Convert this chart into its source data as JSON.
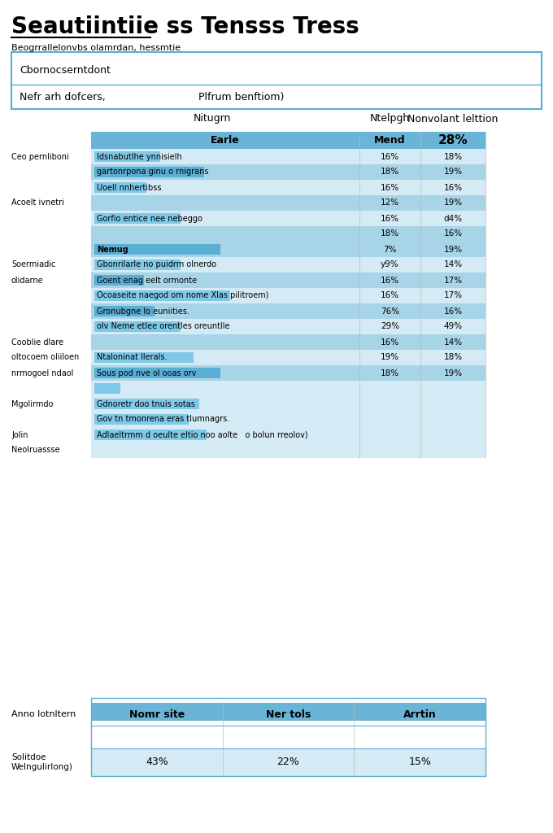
{
  "title": "Seautiintiie ss Tensss Tress",
  "subtitle": "Beogrrallelonvbs olamrdan, hessmtie",
  "bg_color": "#ffffff",
  "header_box_text1": "Cbornocserntdont",
  "header_box_text2": "Nefr arh dofcers,",
  "header_box_text3": "Plfrum benftiom)",
  "col_headers": [
    "Nitugrn",
    "Ntelpgh",
    "Nonvolant lelttion"
  ],
  "table_header_row": [
    "Earle",
    "Mend",
    "28%"
  ],
  "table_header_bg": "#6ab4d8",
  "table_row_bg_dark": "#a8d4e8",
  "table_row_bg_light": "#d4eaf5",
  "bar_color_on_light": "#7ec8e8",
  "bar_color_on_dark": "#5aaed4",
  "table_rows": [
    {
      "left_label": "Ceo pernliboni",
      "bar_text": "Idsnabutlhe ynnisielh",
      "bar_width": 0.25,
      "mid_val": "16%",
      "right_val": "18%",
      "row_bg": "light"
    },
    {
      "left_label": "",
      "bar_text": "gartonrpona ginu o rnigrans",
      "bar_width": 0.42,
      "mid_val": "18%",
      "right_val": "19%",
      "row_bg": "dark"
    },
    {
      "left_label": "",
      "bar_text": "Uoell nnhertibss",
      "bar_width": 0.2,
      "mid_val": "16%",
      "right_val": "16%",
      "row_bg": "light"
    },
    {
      "left_label": "Acoelt ivnetri",
      "bar_text": "",
      "bar_width": 0.0,
      "mid_val": "12%",
      "right_val": "19%",
      "row_bg": "dark"
    },
    {
      "left_label": "",
      "bar_text": "Gorfio entice nee nebeggo",
      "bar_width": 0.33,
      "mid_val": "16%",
      "right_val": "d4%",
      "row_bg": "light"
    },
    {
      "left_label": "",
      "bar_text": "",
      "bar_width": 0.0,
      "mid_val": "18%",
      "right_val": "16%",
      "row_bg": "dark"
    },
    {
      "left_label": "",
      "bar_text": "Nemug",
      "bar_width": 0.48,
      "mid_val": "7%",
      "right_val": "19%",
      "row_bg": "dark",
      "bold_bar": true
    },
    {
      "left_label": "Soermiadic",
      "bar_text": "Gbonrilarle no puidrm olnerdo",
      "bar_width": 0.33,
      "mid_val": "y9%",
      "right_val": "14%",
      "row_bg": "light"
    },
    {
      "left_label": "olidarne",
      "bar_text": "Goent enag eelt ormonte",
      "bar_width": 0.19,
      "mid_val": "16%",
      "right_val": "17%",
      "row_bg": "dark"
    },
    {
      "left_label": "",
      "bar_text": "Ocoaseite naegod om nome Xlas pilitroem)",
      "bar_width": 0.52,
      "mid_val": "16%",
      "right_val": "17%",
      "row_bg": "light"
    },
    {
      "left_label": "",
      "bar_text": "Gronubgne lo euniities.",
      "bar_width": 0.23,
      "mid_val": "76%",
      "right_val": "16%",
      "row_bg": "dark"
    },
    {
      "left_label": "",
      "bar_text": "olv Neme etlee orentles oreuntlle",
      "bar_width": 0.33,
      "mid_val": "29%",
      "right_val": "49%",
      "row_bg": "light"
    },
    {
      "left_label": "Cooblie dlare",
      "bar_text": "",
      "bar_width": 0.0,
      "mid_val": "16%",
      "right_val": "14%",
      "row_bg": "dark"
    },
    {
      "left_label": "oltocoem oliiloen",
      "bar_text": "Ntaloninat llerals.",
      "bar_width": 0.38,
      "mid_val": "19%",
      "right_val": "18%",
      "row_bg": "light"
    },
    {
      "left_label": "nrmogoel ndaol",
      "bar_text": "Sous pod nve ol ooas orv",
      "bar_width": 0.48,
      "mid_val": "18%",
      "right_val": "19%",
      "row_bg": "dark"
    },
    {
      "left_label": "",
      "bar_text": "",
      "bar_width": 0.1,
      "mid_val": "",
      "right_val": "",
      "row_bg": "light"
    },
    {
      "left_label": "Mgolirmdo",
      "bar_text": "Gdnoretr doo tnuis sotas",
      "bar_width": 0.4,
      "mid_val": "",
      "right_val": "",
      "row_bg": "light"
    },
    {
      "left_label": "",
      "bar_text": "Gov tn tmonrena eras tlumnagrs.",
      "bar_width": 0.36,
      "mid_val": "",
      "right_val": "",
      "row_bg": "light"
    },
    {
      "left_label": "Jolin",
      "bar_text": "Adlaeltrmm d oeulte eltio noo aolte   o bolun rreolov)",
      "bar_width": 0.43,
      "mid_val": "",
      "right_val": "",
      "row_bg": "light"
    },
    {
      "left_label": "Neolruassse",
      "bar_text": "",
      "bar_width": 0.0,
      "mid_val": "",
      "right_val": "",
      "row_bg": "light"
    }
  ],
  "bottom_table": {
    "label": "Anno lotnltern",
    "headers": [
      "Nomr site",
      "Ner tols",
      "Arrtin"
    ],
    "header_bg": "#6ab4d8",
    "row2_label": "Solitdoe\nWelngulirlong)",
    "row2_vals": [
      "43%",
      "22%",
      "15%"
    ]
  }
}
